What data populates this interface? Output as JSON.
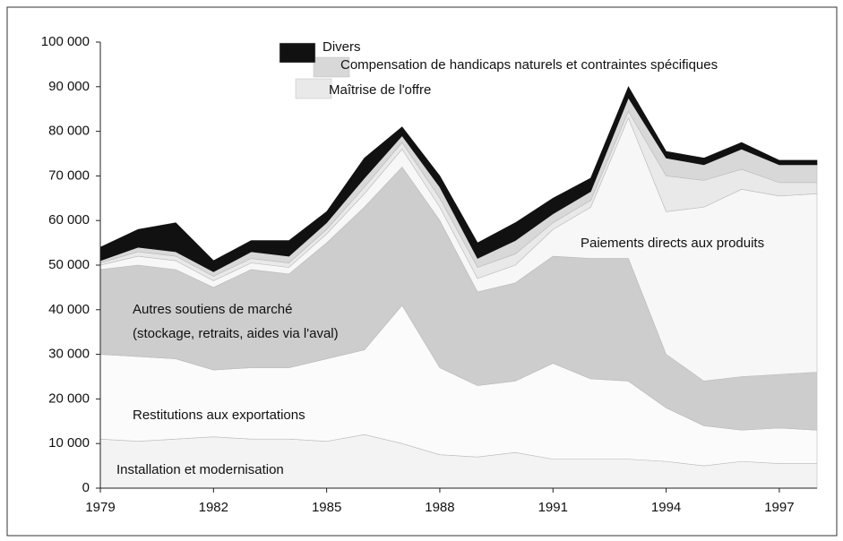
{
  "chart_data": {
    "type": "stacked_area",
    "x": [
      1979,
      1980,
      1981,
      1982,
      1983,
      1984,
      1985,
      1986,
      1987,
      1988,
      1989,
      1990,
      1991,
      1992,
      1993,
      1994,
      1995,
      1996,
      1997,
      1998
    ],
    "xlim": [
      1979,
      1998
    ],
    "xticks": [
      1979,
      1982,
      1985,
      1988,
      1991,
      1994,
      1997
    ],
    "ylim": [
      0,
      100000
    ],
    "yticks": [
      0,
      {
        "value": 10000,
        "label": "10 000"
      },
      {
        "value": 20000,
        "label": "20 000"
      },
      {
        "value": 30000,
        "label": "30 000"
      },
      {
        "value": 40000,
        "label": "40 000"
      },
      {
        "value": 50000,
        "label": "50 000"
      },
      {
        "value": 60000,
        "label": "60 000"
      },
      {
        "value": 70000,
        "label": "70 000"
      },
      {
        "value": 80000,
        "label": "80 000"
      },
      {
        "value": 90000,
        "label": "90 000"
      },
      {
        "value": 100000,
        "label": "100 000"
      }
    ],
    "series": [
      {
        "name": "Installation et modernisation",
        "color": "#f3f3f3",
        "values": [
          11000,
          10500,
          11000,
          11500,
          11000,
          11000,
          10500,
          12000,
          10000,
          7500,
          7000,
          8000,
          6500,
          6500,
          6500,
          6000,
          5000,
          6000,
          5500,
          5500
        ]
      },
      {
        "name": "Restitutions aux exportations",
        "color": "#fbfbfb",
        "values": [
          19000,
          19000,
          18000,
          15000,
          16000,
          16000,
          18500,
          19000,
          31000,
          19500,
          16000,
          16000,
          21500,
          18000,
          17500,
          12000,
          9000,
          7000,
          8000,
          7500
        ]
      },
      {
        "name": "Autres soutiens de marché\n(stockage, retraits, aides via l'aval)",
        "color": "#cdcdcd",
        "values": [
          19000,
          20500,
          20000,
          18500,
          22000,
          21000,
          26000,
          32000,
          31000,
          33000,
          21000,
          22000,
          24000,
          27000,
          27500,
          12000,
          10000,
          12000,
          12000,
          13000
        ]
      },
      {
        "name": "Paiements directs aux produits",
        "color": "#f7f7f7",
        "values": [
          1000,
          2000,
          2000,
          1500,
          1500,
          1500,
          2000,
          3000,
          4000,
          3000,
          3000,
          4000,
          6000,
          11500,
          31500,
          32000,
          39000,
          42000,
          40000,
          40000
        ]
      },
      {
        "name": "Maîtrise de l'offre",
        "color": "#e9e9e9",
        "values": [
          500,
          1000,
          1000,
          1000,
          1000,
          1000,
          1000,
          1500,
          1500,
          2000,
          2500,
          2500,
          1500,
          1500,
          1500,
          8000,
          6000,
          4500,
          3000,
          2500
        ]
      },
      {
        "name": "Compensation de handicaps naturels et contraintes spécifiques",
        "color": "#d8d8d8",
        "values": [
          500,
          1000,
          1000,
          1000,
          1500,
          1500,
          1500,
          2000,
          1500,
          2500,
          2000,
          3000,
          2000,
          2000,
          3000,
          4000,
          3500,
          4500,
          4000,
          4000
        ]
      },
      {
        "name": "Divers",
        "color": "#111111",
        "values": [
          3000,
          4000,
          6500,
          2500,
          2500,
          3500,
          2500,
          4500,
          2000,
          2500,
          3500,
          4000,
          3500,
          3000,
          2500,
          1500,
          1500,
          1500,
          1000,
          1000
        ]
      }
    ]
  }
}
